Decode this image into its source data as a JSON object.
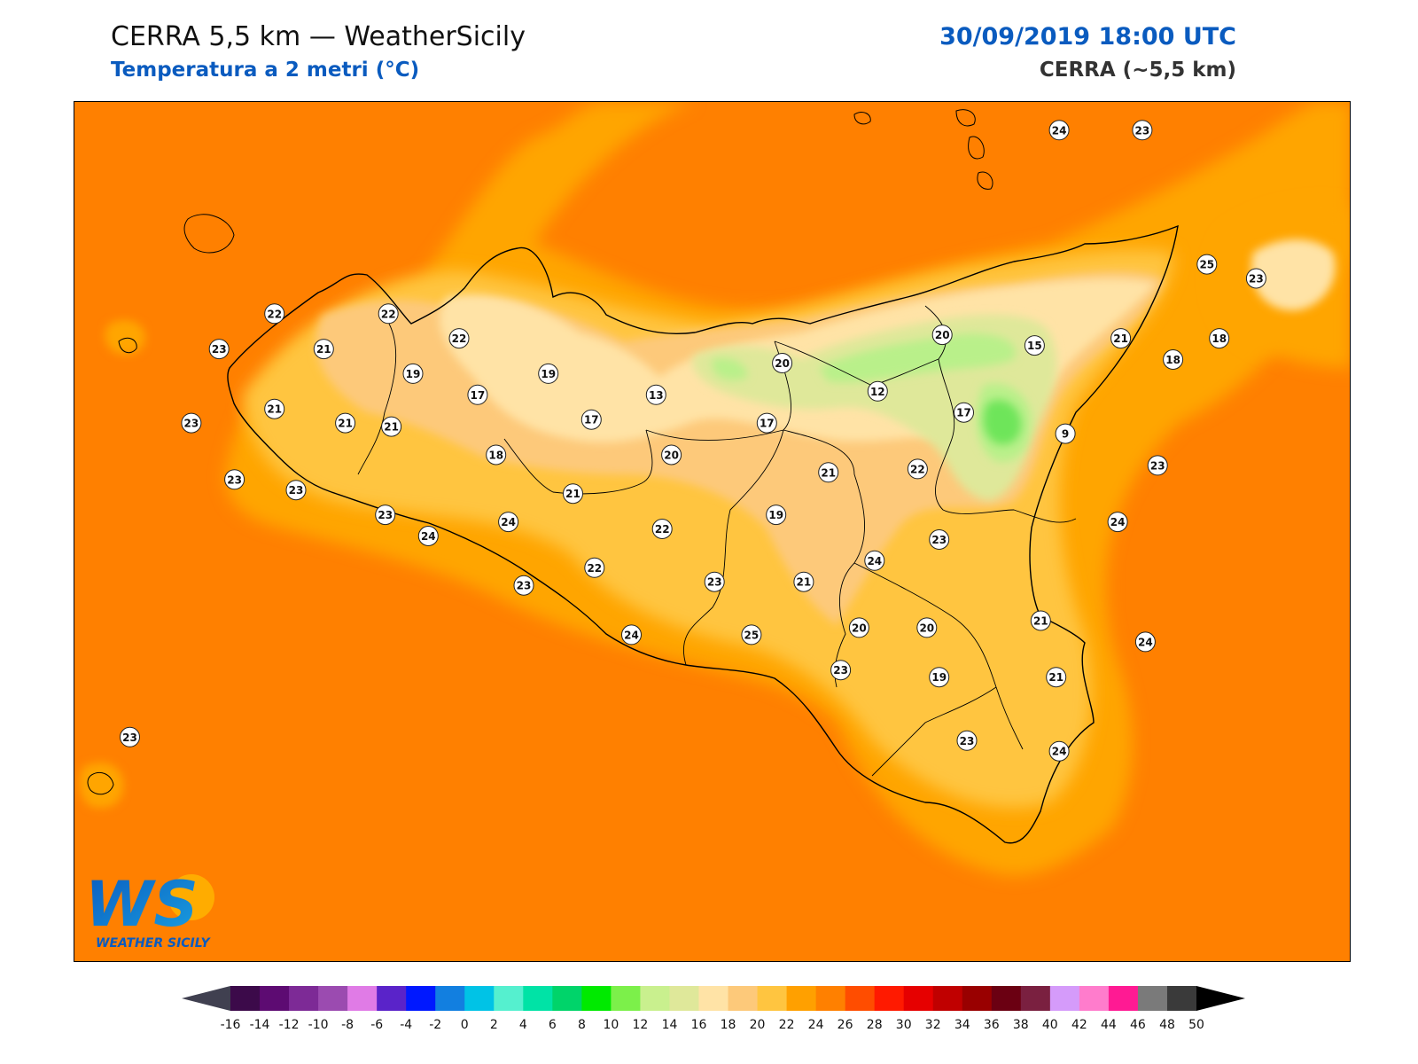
{
  "header": {
    "title": "CERRA 5,5 km — WeatherSicily",
    "subtitle": "Temperatura a 2 metri (°C)",
    "datetime": "30/09/2019 18:00 UTC",
    "model": "CERRA (~5,5 km)"
  },
  "logo": {
    "letters": "WS",
    "caption": "WEATHER SICILY"
  },
  "colors": {
    "sea": "#ff8000",
    "coast_warm": "#ffa500",
    "t22": "#ffc540",
    "t20": "#fdc97a",
    "t18": "#ffe3a6",
    "t14": "#dfe89a",
    "t12": "#b9f08a",
    "t8": "#6ee55a",
    "title_blue": "#0a5bbf"
  },
  "colorbar": {
    "ticks": [
      "-16",
      "-14",
      "-12",
      "-10",
      "-8",
      "-6",
      "-4",
      "-2",
      "0",
      "2",
      "4",
      "6",
      "8",
      "10",
      "12",
      "14",
      "16",
      "18",
      "20",
      "22",
      "24",
      "26",
      "28",
      "30",
      "32",
      "34",
      "36",
      "38",
      "40",
      "42",
      "44",
      "46",
      "48",
      "50"
    ],
    "colors": [
      "#3c0a4a",
      "#5d0b72",
      "#7d2a96",
      "#9b4bb0",
      "#e07be6",
      "#5a23c9",
      "#0018ff",
      "#127fe0",
      "#00c3e6",
      "#55f0cf",
      "#00e3a6",
      "#00d46a",
      "#00ea00",
      "#7cf04a",
      "#c9f08e",
      "#dfe89a",
      "#ffe3a6",
      "#fdc97a",
      "#ffc540",
      "#ffa000",
      "#ff8000",
      "#ff4d00",
      "#ff1a00",
      "#e60000",
      "#c00000",
      "#990000",
      "#6b0012",
      "#7a2040",
      "#d59bfa",
      "#ff7ccc",
      "#ff1a93",
      "#7a7a7a",
      "#3a3a3a"
    ]
  },
  "stations": [
    {
      "label": "24",
      "lon": 14.95,
      "lat": 38.78
    },
    {
      "label": "23",
      "lon": 15.22,
      "lat": 38.78
    },
    {
      "label": "25",
      "lon": 15.43,
      "lat": 38.4
    },
    {
      "label": "23",
      "lon": 15.59,
      "lat": 38.36
    },
    {
      "label": "22",
      "lon": 12.4,
      "lat": 38.26
    },
    {
      "label": "22",
      "lon": 12.77,
      "lat": 38.26
    },
    {
      "label": "22",
      "lon": 13.0,
      "lat": 38.19
    },
    {
      "label": "23",
      "lon": 12.22,
      "lat": 38.16
    },
    {
      "label": "21",
      "lon": 12.56,
      "lat": 38.16
    },
    {
      "label": "19",
      "lon": 12.85,
      "lat": 38.09
    },
    {
      "label": "19",
      "lon": 13.29,
      "lat": 38.09
    },
    {
      "label": "17",
      "lon": 13.06,
      "lat": 38.03
    },
    {
      "label": "13",
      "lon": 13.64,
      "lat": 38.03
    },
    {
      "label": "20",
      "lon": 14.57,
      "lat": 38.2
    },
    {
      "label": "15",
      "lon": 14.87,
      "lat": 38.17
    },
    {
      "label": "21",
      "lon": 15.15,
      "lat": 38.19
    },
    {
      "label": "18",
      "lon": 15.47,
      "lat": 38.19
    },
    {
      "label": "18",
      "lon": 15.32,
      "lat": 38.13
    },
    {
      "label": "20",
      "lon": 14.05,
      "lat": 38.12
    },
    {
      "label": "12",
      "lon": 14.36,
      "lat": 38.04
    },
    {
      "label": "17",
      "lon": 14.64,
      "lat": 37.98
    },
    {
      "label": "21",
      "lon": 12.4,
      "lat": 37.99
    },
    {
      "label": "21",
      "lon": 12.63,
      "lat": 37.95
    },
    {
      "label": "23",
      "lon": 12.13,
      "lat": 37.95
    },
    {
      "label": "17",
      "lon": 13.43,
      "lat": 37.96
    },
    {
      "label": "17",
      "lon": 14.0,
      "lat": 37.95
    },
    {
      "label": "21",
      "lon": 12.78,
      "lat": 37.94
    },
    {
      "label": "9",
      "lon": 14.97,
      "lat": 37.92
    },
    {
      "label": "18",
      "lon": 13.12,
      "lat": 37.86
    },
    {
      "label": "20",
      "lon": 13.69,
      "lat": 37.86
    },
    {
      "label": "23",
      "lon": 15.27,
      "lat": 37.83
    },
    {
      "label": "23",
      "lon": 12.27,
      "lat": 37.79
    },
    {
      "label": "21",
      "lon": 14.2,
      "lat": 37.81
    },
    {
      "label": "22",
      "lon": 14.49,
      "lat": 37.82
    },
    {
      "label": "23",
      "lon": 12.47,
      "lat": 37.76
    },
    {
      "label": "21",
      "lon": 13.37,
      "lat": 37.75
    },
    {
      "label": "23",
      "lon": 12.76,
      "lat": 37.69
    },
    {
      "label": "24",
      "lon": 13.16,
      "lat": 37.67
    },
    {
      "label": "22",
      "lon": 13.66,
      "lat": 37.65
    },
    {
      "label": "19",
      "lon": 14.03,
      "lat": 37.69
    },
    {
      "label": "24",
      "lon": 15.14,
      "lat": 37.67
    },
    {
      "label": "24",
      "lon": 12.9,
      "lat": 37.63
    },
    {
      "label": "23",
      "lon": 14.56,
      "lat": 37.62
    },
    {
      "label": "22",
      "lon": 13.44,
      "lat": 37.54
    },
    {
      "label": "24",
      "lon": 14.35,
      "lat": 37.56
    },
    {
      "label": "23",
      "lon": 13.21,
      "lat": 37.49
    },
    {
      "label": "23",
      "lon": 13.83,
      "lat": 37.5
    },
    {
      "label": "21",
      "lon": 14.12,
      "lat": 37.5
    },
    {
      "label": "21",
      "lon": 14.89,
      "lat": 37.39
    },
    {
      "label": "20",
      "lon": 14.3,
      "lat": 37.37
    },
    {
      "label": "20",
      "lon": 14.52,
      "lat": 37.37
    },
    {
      "label": "24",
      "lon": 13.56,
      "lat": 37.35
    },
    {
      "label": "25",
      "lon": 13.95,
      "lat": 37.35
    },
    {
      "label": "24",
      "lon": 15.23,
      "lat": 37.33
    },
    {
      "label": "19",
      "lon": 14.56,
      "lat": 37.23
    },
    {
      "label": "21",
      "lon": 14.94,
      "lat": 37.23
    },
    {
      "label": "23",
      "lon": 14.24,
      "lat": 37.25
    },
    {
      "label": "23",
      "lon": 14.65,
      "lat": 37.05
    },
    {
      "label": "24",
      "lon": 14.95,
      "lat": 37.02
    },
    {
      "label": "23",
      "lon": 11.93,
      "lat": 37.06
    }
  ]
}
